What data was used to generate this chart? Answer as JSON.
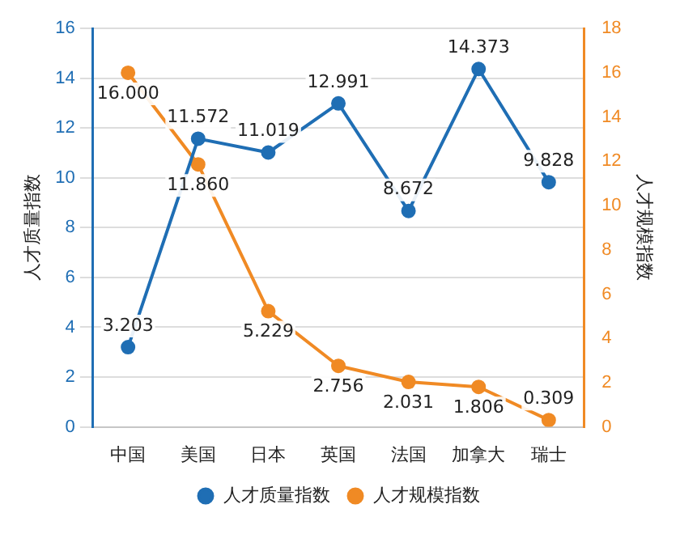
{
  "chart_data": {
    "type": "line",
    "categories": [
      "中国",
      "美国",
      "日本",
      "英国",
      "法国",
      "加拿大",
      "瑞士"
    ],
    "series": [
      {
        "name": "人才质量指数",
        "color": "#1f6eb4",
        "values": [
          3.203,
          11.572,
          11.019,
          12.991,
          8.672,
          14.373,
          9.828
        ],
        "value_labels": [
          "3.203",
          "11.572",
          "11.019",
          "12.991",
          "8.672",
          "14.373",
          "9.828"
        ]
      },
      {
        "name": "人才规模指数",
        "color": "#f08a24",
        "axis": "y2",
        "values": [
          16.0,
          11.86,
          5.229,
          2.756,
          2.031,
          1.806,
          0.309
        ],
        "value_labels": [
          "16.000",
          "11.860",
          "5.229",
          "2.756",
          "2.031",
          "1.806",
          "0.309"
        ]
      }
    ],
    "ylabel": "人才质量指数",
    "y2label": "人才规模指数",
    "ylim": [
      0,
      16
    ],
    "yticks": [
      0,
      2,
      4,
      6,
      8,
      10,
      12,
      14,
      16
    ],
    "y2lim": [
      0,
      18
    ],
    "y2ticks": [
      0,
      2,
      4,
      6,
      8,
      10,
      12,
      14,
      16,
      18
    ],
    "grid": "y",
    "legend": "bottom",
    "marker": "circle",
    "line_style": "solid"
  }
}
